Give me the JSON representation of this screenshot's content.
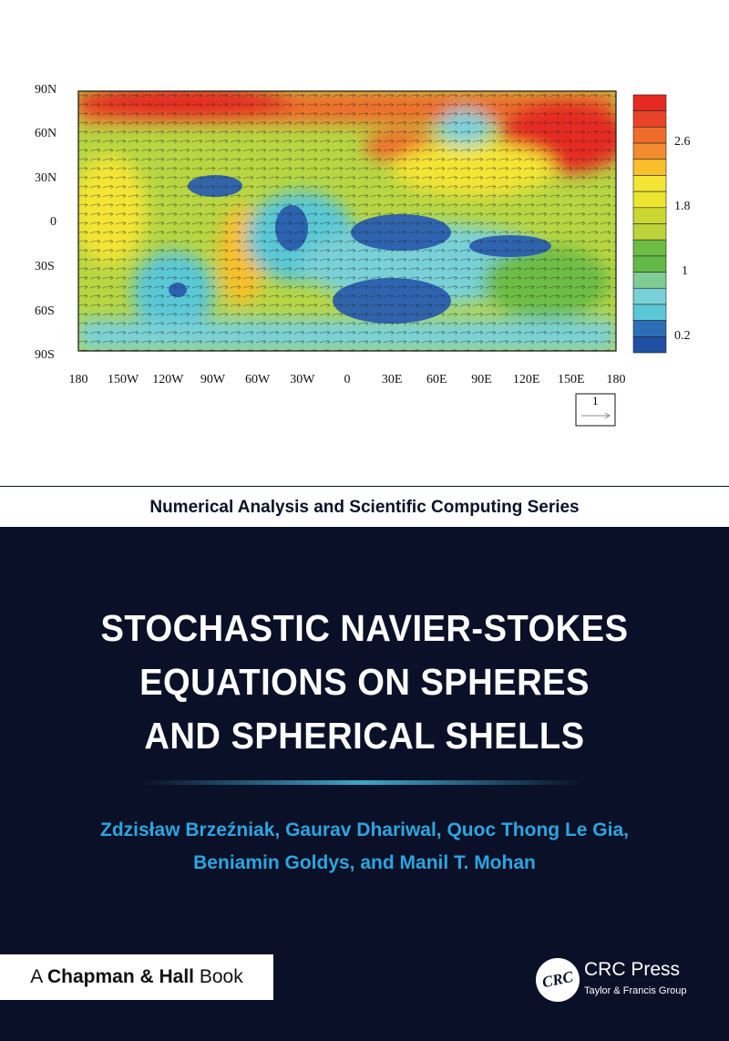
{
  "figure": {
    "y_ticks": [
      "90N",
      "60N",
      "30N",
      "0",
      "30S",
      "60S",
      "90S"
    ],
    "x_ticks": [
      "180",
      "150W",
      "120W",
      "90W",
      "60W",
      "30W",
      "0",
      "30E",
      "60E",
      "90E",
      "120E",
      "150E",
      "180"
    ],
    "colorbar_labels": [
      "2.6",
      "1.8",
      "1",
      "0.2"
    ],
    "colorbar_colors": [
      "#e52a22",
      "#e9442a",
      "#ef6d2a",
      "#f28c2e",
      "#f9bf2c",
      "#f4e534",
      "#ebe530",
      "#cbd832",
      "#bcd43a",
      "#6dbd45",
      "#62b947",
      "#7fcc95",
      "#79d1d8",
      "#5ac7d6",
      "#2e6eb7",
      "#1f4fa3"
    ],
    "reference_vector_label": "1"
  },
  "series": "Numerical Analysis and Scientific Computing Series",
  "title_lines": [
    "STOCHASTIC NAVIER-STOKES",
    "EQUATIONS ON SPHERES",
    "AND SPHERICAL SHELLS"
  ],
  "authors_lines": [
    "Zdzisław Brzeźniak, Gaurav Dhariwal, Quoc Thong Le Gia,",
    "Beniamin Goldys, and Manil T. Mohan"
  ],
  "imprint": {
    "prefix": "A",
    "name": "Chapman & Hall",
    "suffix": "Book"
  },
  "publisher": {
    "logo_text": "CRC",
    "name": "CRC Press",
    "group": "Taylor & Francis Group"
  }
}
